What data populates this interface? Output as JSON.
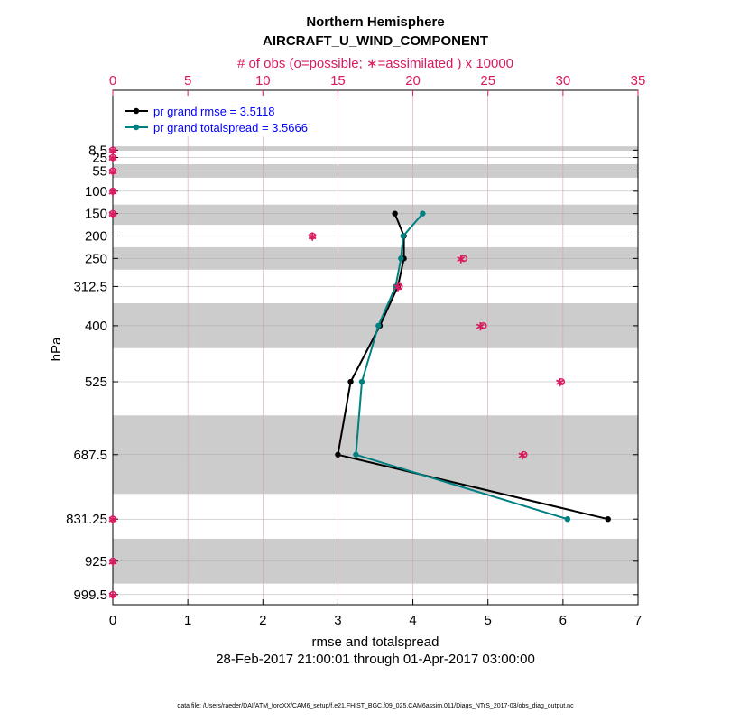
{
  "chart_data": {
    "type": "line",
    "title": "Northern Hemisphere",
    "subtitle": "AIRCRAFT_U_WIND_COMPONENT",
    "top_axis_label": "# of obs (o=possible; ∗=assimilated ) x 10000",
    "xlabel": "rmse and totalspread",
    "ylabel": "hPa",
    "date_range": "28-Feb-2017 21:00:01 through 01-Apr-2017 03:00:00",
    "footer": "data file: /Users/raeder/DAI/ATM_forcXX/CAM6_setup/f.e21.FHIST_BGC.f09_025.CAM6assim.011/Diags_NTrS_2017-03/obs_diag_output.nc",
    "xlim": [
      0,
      7
    ],
    "x_ticks": [
      "0",
      "1",
      "2",
      "3",
      "4",
      "5",
      "6",
      "7"
    ],
    "top_xlim": [
      0,
      35
    ],
    "top_ticks": [
      "0",
      "5",
      "10",
      "15",
      "20",
      "25",
      "30",
      "35"
    ],
    "levels": [
      "8.5",
      "25",
      "55",
      "100",
      "150",
      "200",
      "250",
      "312.5",
      "400",
      "525",
      "687.5",
      "831.25",
      "925",
      "999.5"
    ],
    "shaded_bands": [
      [
        0,
        9
      ],
      [
        40,
        70
      ],
      [
        130,
        175
      ],
      [
        225,
        275
      ],
      [
        350,
        450
      ],
      [
        600,
        775
      ],
      [
        875,
        975
      ]
    ],
    "series": [
      {
        "name": "pr grand rmse",
        "legend": "pr grand rmse = 3.5118",
        "color": "#000000",
        "levels": [
          150,
          200,
          250,
          312.5,
          400,
          525,
          687.5,
          831.25
        ],
        "values": [
          3.76,
          3.88,
          3.88,
          3.8,
          3.56,
          3.17,
          3.0,
          6.6
        ]
      },
      {
        "name": "pr grand totalspread",
        "legend": "pr grand totalspread = 3.5666",
        "color": "#008080",
        "levels": [
          150,
          200,
          250,
          312.5,
          400,
          525,
          687.5,
          831.25
        ],
        "values": [
          4.13,
          3.87,
          3.84,
          3.77,
          3.54,
          3.32,
          3.24,
          6.06
        ]
      }
    ],
    "obs_counts": {
      "color": "#d81b60",
      "levels": [
        8.5,
        25,
        55,
        100,
        150,
        200,
        250,
        312.5,
        400,
        525,
        687.5,
        831.25,
        925,
        999.5
      ],
      "possible": [
        0,
        0,
        0,
        0,
        0,
        13.3,
        23.4,
        19.1,
        24.7,
        29.9,
        27.4,
        0,
        0,
        0
      ],
      "assimilated": [
        0,
        0,
        0,
        0,
        0,
        13.3,
        23.2,
        19.0,
        24.5,
        29.8,
        27.3,
        0,
        0,
        0
      ]
    }
  }
}
